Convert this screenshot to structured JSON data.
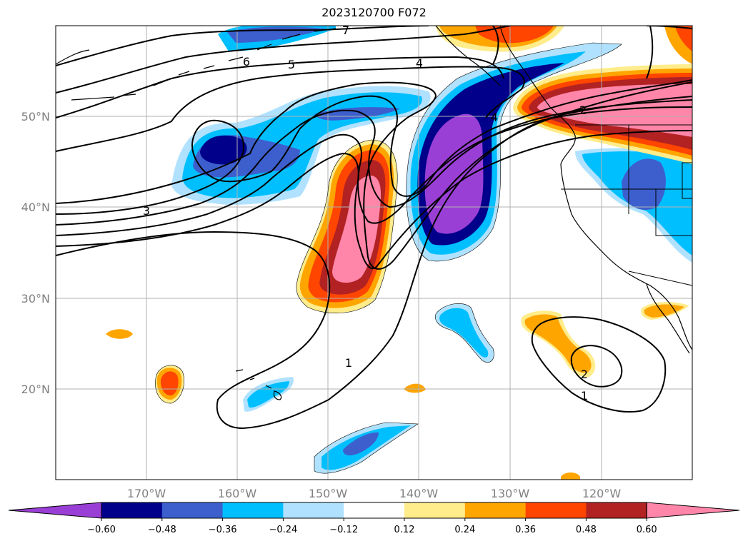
{
  "title": "2023120700 F072",
  "map": {
    "lat_labels": [
      "50°N",
      "40°N",
      "30°N",
      "20°N"
    ],
    "lon_labels": [
      "170°W",
      "160°W",
      "150°W",
      "140°W",
      "130°W",
      "120°W"
    ],
    "contour_labels": [
      "1",
      "1",
      "2",
      "2",
      "3",
      "4",
      "4",
      "5",
      "6",
      "7"
    ]
  },
  "colorbar": {
    "ticks": [
      "−0.60",
      "−0.48",
      "−0.36",
      "−0.24",
      "−0.12",
      "0.12",
      "0.24",
      "0.36",
      "0.48",
      "0.60"
    ],
    "colors": [
      "#9a3fd6",
      "#00008b",
      "#3c5fcd",
      "#00bfff",
      "#b0e2ff",
      "#ffffff",
      "#ffec8b",
      "#ffa500",
      "#ff4500",
      "#b22222",
      "#ff86a9"
    ]
  }
}
